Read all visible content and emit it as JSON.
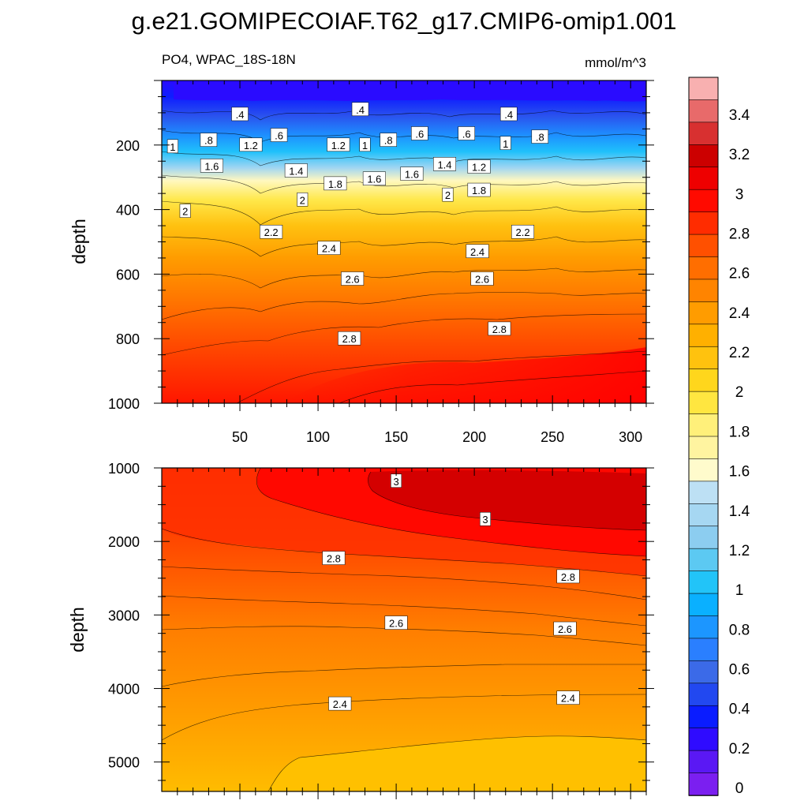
{
  "title": "g.e21.GOMIPECOIAF.T62_g17.CMIP6-omip1.001",
  "subtitle_left": "PO4, WPAC_18S-18N",
  "subtitle_right": "mmol/m^3",
  "colorbar": {
    "levels": [
      "0",
      "0.2",
      "0.4",
      "0.6",
      "0.8",
      "1",
      "1.2",
      "1.4",
      "1.6",
      "1.8",
      "2",
      "2.2",
      "2.4",
      "2.6",
      "2.8",
      "3",
      "3.2",
      "3.4"
    ],
    "colors": [
      "#7b1ff0",
      "#5a18f4",
      "#2f0bff",
      "#0a1cff",
      "#2248f0",
      "#3b6ae8",
      "#2a7fff",
      "#1c96ff",
      "#0ab0ff",
      "#22c4f8",
      "#5cc9f2",
      "#8ccdf0",
      "#a6d7f2",
      "#bde0f4",
      "#fffbcc",
      "#fff4a0",
      "#fff07a",
      "#ffe640",
      "#ffd61c",
      "#ffc20e",
      "#ffb000",
      "#ff9c00",
      "#ff8400",
      "#ff6e00",
      "#ff5000",
      "#ff2c00",
      "#ff0a00",
      "#ee0000",
      "#cc0000",
      "#d83030",
      "#e86a6a",
      "#f8b0b0"
    ]
  },
  "chart_data": [
    {
      "type": "heatmap",
      "subtype": "filled contour",
      "variable": "PO4",
      "units": "mmol/m^3",
      "xlabel": "",
      "ylabel": "depth",
      "xlim": [
        0,
        310
      ],
      "ylim": [
        1000,
        0
      ],
      "xticks": [
        "50",
        "100",
        "150",
        "200",
        "250",
        "300"
      ],
      "yticks": [
        "200",
        "400",
        "600",
        "800",
        "1000"
      ],
      "contour_labels": [
        {
          "text": ".4",
          "x": 50,
          "y": 105
        },
        {
          "text": ".4",
          "x": 127,
          "y": 90
        },
        {
          "text": ".4",
          "x": 222,
          "y": 105
        },
        {
          "text": ".8",
          "x": 30,
          "y": 185
        },
        {
          "text": ".6",
          "x": 75,
          "y": 170
        },
        {
          "text": ".8",
          "x": 145,
          "y": 185
        },
        {
          "text": ".6",
          "x": 165,
          "y": 165
        },
        {
          "text": ".6",
          "x": 195,
          "y": 165
        },
        {
          "text": ".8",
          "x": 242,
          "y": 175
        },
        {
          "text": "1",
          "x": 7,
          "y": 205
        },
        {
          "text": "1.2",
          "x": 57,
          "y": 200
        },
        {
          "text": "1.2",
          "x": 113,
          "y": 200
        },
        {
          "text": "1",
          "x": 130,
          "y": 200
        },
        {
          "text": "1",
          "x": 220,
          "y": 195
        },
        {
          "text": "1.4",
          "x": 181,
          "y": 260
        },
        {
          "text": "1.2",
          "x": 203,
          "y": 268
        },
        {
          "text": "1.6",
          "x": 32,
          "y": 265
        },
        {
          "text": "1.4",
          "x": 86,
          "y": 280
        },
        {
          "text": "1.8",
          "x": 111,
          "y": 320
        },
        {
          "text": "1.6",
          "x": 136,
          "y": 305
        },
        {
          "text": "1.6",
          "x": 160,
          "y": 290
        },
        {
          "text": "1.8",
          "x": 203,
          "y": 340
        },
        {
          "text": "2",
          "x": 15,
          "y": 405
        },
        {
          "text": "2",
          "x": 90,
          "y": 370
        },
        {
          "text": "2",
          "x": 183,
          "y": 355
        },
        {
          "text": "2.2",
          "x": 70,
          "y": 470
        },
        {
          "text": "2.2",
          "x": 231,
          "y": 470
        },
        {
          "text": "2.4",
          "x": 107,
          "y": 520
        },
        {
          "text": "2.4",
          "x": 202,
          "y": 530
        },
        {
          "text": "2.6",
          "x": 122,
          "y": 615
        },
        {
          "text": "2.6",
          "x": 205,
          "y": 615
        },
        {
          "text": "2.8",
          "x": 120,
          "y": 800
        },
        {
          "text": "2.8",
          "x": 216,
          "y": 770
        }
      ]
    },
    {
      "type": "heatmap",
      "subtype": "filled contour",
      "variable": "PO4",
      "units": "mmol/m^3",
      "xlabel": "",
      "ylabel": "depth",
      "xlim": [
        0,
        310
      ],
      "ylim": [
        5400,
        1000
      ],
      "xticks": [],
      "yticks": [
        "1000",
        "2000",
        "3000",
        "4000",
        "5000"
      ],
      "contour_labels": [
        {
          "text": "3",
          "x": 150,
          "y": 1180
        },
        {
          "text": "3",
          "x": 207,
          "y": 1700
        },
        {
          "text": "2.8",
          "x": 110,
          "y": 2230
        },
        {
          "text": "2.8",
          "x": 260,
          "y": 2480
        },
        {
          "text": "2.6",
          "x": 150,
          "y": 3110
        },
        {
          "text": "2.6",
          "x": 258,
          "y": 3190
        },
        {
          "text": "2.4",
          "x": 114,
          "y": 4210
        },
        {
          "text": "2.4",
          "x": 260,
          "y": 4130
        }
      ]
    }
  ]
}
